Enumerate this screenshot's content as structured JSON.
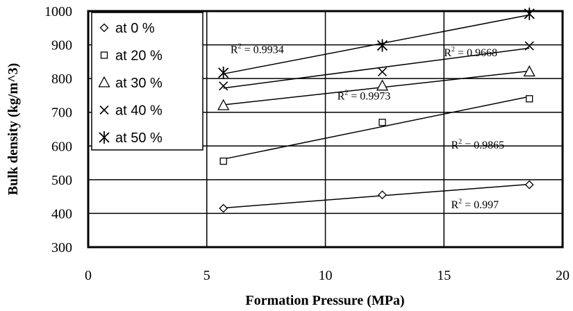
{
  "chart_data": {
    "type": "scatter",
    "xlabel": "Formation Pressure (MPa)",
    "ylabel": "Bulk density (kg/m^3)",
    "xlim": [
      0,
      20
    ],
    "ylim": [
      300,
      1000
    ],
    "x_ticks": [
      "0",
      "5",
      "10",
      "15",
      "20"
    ],
    "y_ticks": [
      "300",
      "400",
      "500",
      "600",
      "700",
      "800",
      "900",
      "1000"
    ],
    "grid": true,
    "legend_position": "top-left",
    "series": [
      {
        "name": "at 0 %",
        "marker": "diamond",
        "x": [
          5.7,
          12.4,
          18.6
        ],
        "y": [
          415,
          455,
          485
        ],
        "r2": "0.997"
      },
      {
        "name": "at 20 %",
        "marker": "square",
        "x": [
          5.7,
          12.4,
          18.6
        ],
        "y": [
          555,
          670,
          740
        ],
        "r2": "0.9865"
      },
      {
        "name": "at 30 %",
        "marker": "triangle",
        "x": [
          5.7,
          12.4,
          18.6
        ],
        "y": [
          720,
          778,
          820
        ],
        "r2": "0.9973"
      },
      {
        "name": "at 40 %",
        "marker": "cross",
        "x": [
          5.7,
          12.4,
          18.6
        ],
        "y": [
          778,
          820,
          897
        ],
        "r2": "0.9668"
      },
      {
        "name": "at 50 %",
        "marker": "star",
        "x": [
          5.7,
          12.4,
          18.6
        ],
        "y": [
          817,
          898,
          992
        ],
        "r2": "0.9934"
      }
    ],
    "annotations": [
      {
        "series": "at 0 %",
        "label": "R",
        "sup": "2",
        "text": " = 0.997",
        "x": 15.3,
        "y": 415
      },
      {
        "series": "at 20 %",
        "label": "R",
        "sup": "2",
        "text": " = 0.9865",
        "x": 15.3,
        "y": 592
      },
      {
        "series": "at 30 %",
        "label": "R",
        "sup": "2",
        "text": " = 0.9973",
        "x": 10.5,
        "y": 737
      },
      {
        "series": "at 40 %",
        "label": "R",
        "sup": "2",
        "text": " = 0.9668",
        "x": 15.0,
        "y": 866
      },
      {
        "series": "at 50 %",
        "label": "R",
        "sup": "2",
        "text": " = 0.9934",
        "x": 6.0,
        "y": 875
      }
    ]
  }
}
